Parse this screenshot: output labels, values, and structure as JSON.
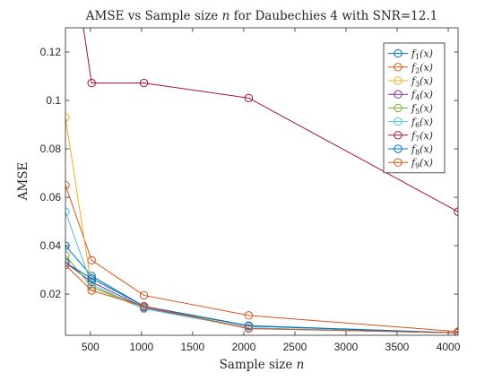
{
  "chart_data": {
    "type": "line",
    "title": "AMSE vs Sample size n for Daubechies 4 with SNR=12.1",
    "title_parts": {
      "before": "AMSE vs Sample size ",
      "italic": "n",
      "after": " for Daubechies 4 with SNR=12.1"
    },
    "xlabel": "Sample size n",
    "xlabel_parts": {
      "before": "Sample size ",
      "italic": "n"
    },
    "ylabel": "AMSE",
    "xlim": [
      256,
      4096
    ],
    "ylim": [
      0.003,
      0.13
    ],
    "xticks": [
      500,
      1000,
      1500,
      2000,
      2500,
      3000,
      3500,
      4000
    ],
    "xtick_labels": [
      "500",
      "1000",
      "1500",
      "2000",
      "2500",
      "3000",
      "3500",
      "4000"
    ],
    "yticks": [
      0.02,
      0.04,
      0.06,
      0.08,
      0.1,
      0.12
    ],
    "ytick_labels": [
      "0.02",
      "0.04",
      "0.06",
      "0.08",
      "0.1",
      "0.12"
    ],
    "grid": false,
    "legend_position": "top-right",
    "x": [
      256,
      512,
      1024,
      2048,
      4096
    ],
    "series": [
      {
        "name": "f1(x)",
        "label_sub": "1",
        "color": "#0072BD",
        "values": [
          0.04,
          0.0275,
          0.015,
          0.007,
          0.004
        ]
      },
      {
        "name": "f2(x)",
        "label_sub": "2",
        "color": "#D95319",
        "values": [
          0.065,
          0.034,
          0.0195,
          0.0112,
          0.0045
        ]
      },
      {
        "name": "f3(x)",
        "label_sub": "3",
        "color": "#EDB120",
        "values": [
          0.093,
          0.023,
          0.015,
          0.006,
          0.004
        ]
      },
      {
        "name": "f4(x)",
        "label_sub": "4",
        "color": "#7E2F8E",
        "values": [
          0.033,
          0.025,
          0.0145,
          0.0058,
          0.004
        ]
      },
      {
        "name": "f5(x)",
        "label_sub": "5",
        "color": "#77AC30",
        "values": [
          0.036,
          0.023,
          0.014,
          0.006,
          0.004
        ]
      },
      {
        "name": "f6(x)",
        "label_sub": "6",
        "color": "#4DBEEE",
        "values": [
          0.054,
          0.024,
          0.014,
          0.006,
          0.004
        ]
      },
      {
        "name": "f7(x)",
        "label_sub": "7",
        "color": "#A2142F",
        "values": [
          0.18,
          0.1072,
          0.1072,
          0.101,
          0.054
        ]
      },
      {
        "name": "f8(x)",
        "label_sub": "8",
        "color": "#0072BD",
        "values": [
          0.033,
          0.0265,
          0.015,
          0.0068,
          0.004
        ]
      },
      {
        "name": "f9(x)",
        "label_sub": "9",
        "color": "#D95319",
        "values": [
          0.032,
          0.0215,
          0.015,
          0.0058,
          0.004
        ]
      }
    ]
  }
}
